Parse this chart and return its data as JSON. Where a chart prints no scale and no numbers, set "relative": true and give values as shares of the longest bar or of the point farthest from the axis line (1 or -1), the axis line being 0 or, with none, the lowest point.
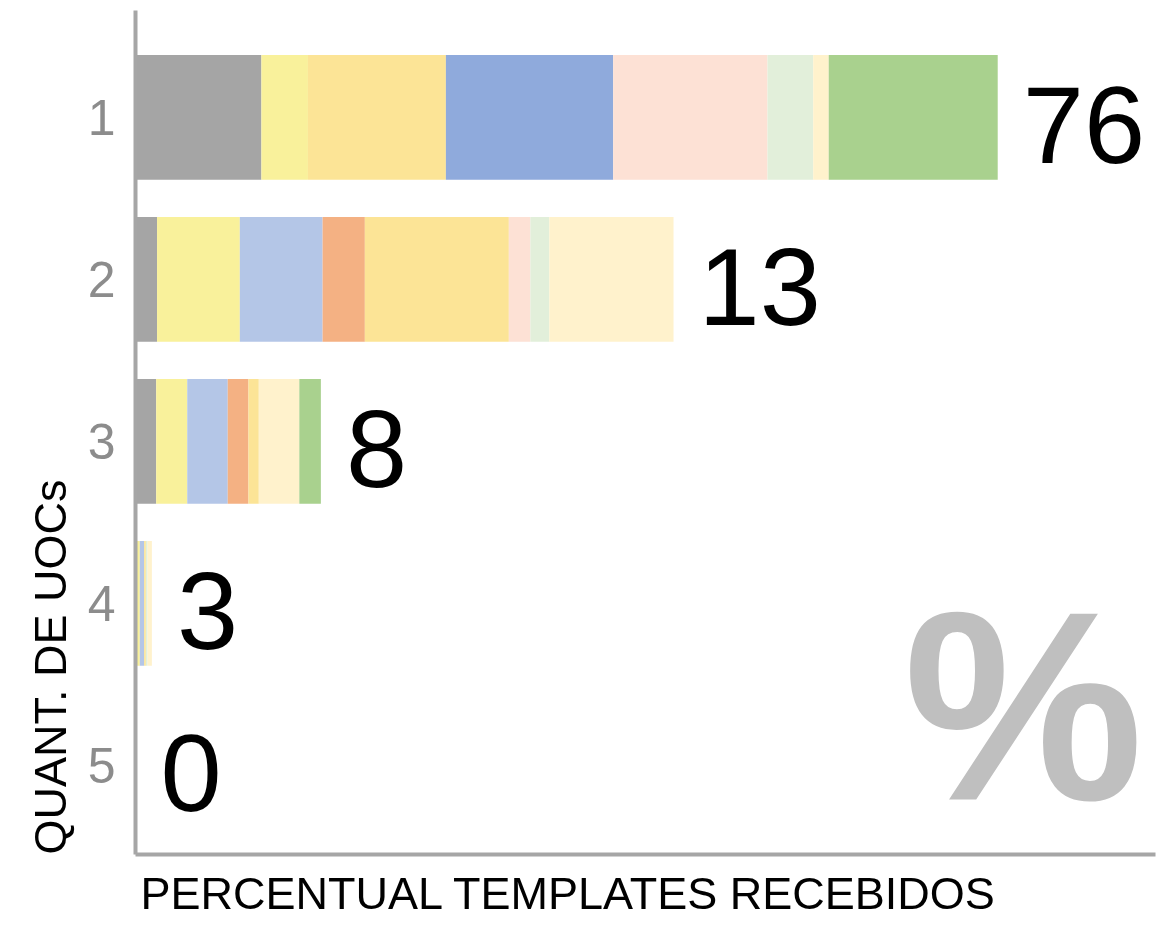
{
  "chart_data": {
    "type": "bar",
    "orientation": "horizontal",
    "stacked": true,
    "relative": true,
    "tick_labels": "y",
    "xlabel": "PERCENTUAL TEMPLATES RECEBIDOS",
    "ylabel": "QUANT. DE UOCs",
    "categories": [
      "1",
      "2",
      "3",
      "4",
      "5"
    ],
    "series": [
      {
        "values": [
          0.146,
          0.025,
          0.024,
          0.005,
          null
        ],
        "colors": [
          "#a5a5a5",
          "#a5a5a5",
          "#a5a5a5",
          "#f9f19b",
          null
        ]
      },
      {
        "values": [
          0.054,
          0.096,
          0.036,
          0.005,
          null
        ],
        "colors": [
          "#f9f19b",
          "#f9f19b",
          "#f9f19b",
          "#b4c6e7",
          null
        ]
      },
      {
        "values": [
          0.16,
          0.096,
          0.047,
          0.002,
          null
        ],
        "colors": [
          "#fce496",
          "#b4c6e7",
          "#b4c6e7",
          "#fce496",
          null
        ]
      },
      {
        "values": [
          0.194,
          0.049,
          0.024,
          0.002,
          null
        ],
        "colors": [
          "#8faadc",
          "#f4b183",
          "#f4b183",
          "#e2efda",
          null
        ]
      },
      {
        "values": [
          0.179,
          0.167,
          0.012,
          0.005,
          null
        ],
        "colors": [
          "#fde1d5",
          "#fce496",
          "#fce496",
          "#fff2cc",
          null
        ]
      },
      {
        "values": [
          0.053,
          0.025,
          0.047,
          null,
          null
        ],
        "colors": [
          "#e2efda",
          "#fde1d5",
          "#fff2cc",
          null,
          null
        ]
      },
      {
        "values": [
          0.018,
          0.022,
          0.025,
          null,
          null
        ],
        "colors": [
          "#fff2cc",
          "#e2efda",
          "#a9d18e",
          null,
          null
        ]
      },
      {
        "values": [
          0.196,
          0.144,
          null,
          null,
          null
        ],
        "colors": [
          "#a9d18e",
          "#fff2cc",
          null,
          null,
          null
        ]
      }
    ],
    "annotations": [
      {
        "text": "76",
        "x": 1,
        "y": "1"
      },
      {
        "text": "13",
        "x": 0.624,
        "y": "2"
      },
      {
        "text": "8",
        "x": 0.215,
        "y": "3"
      },
      {
        "text": "3",
        "x": 0.019,
        "y": "4"
      },
      "0",
      "%"
    ]
  }
}
